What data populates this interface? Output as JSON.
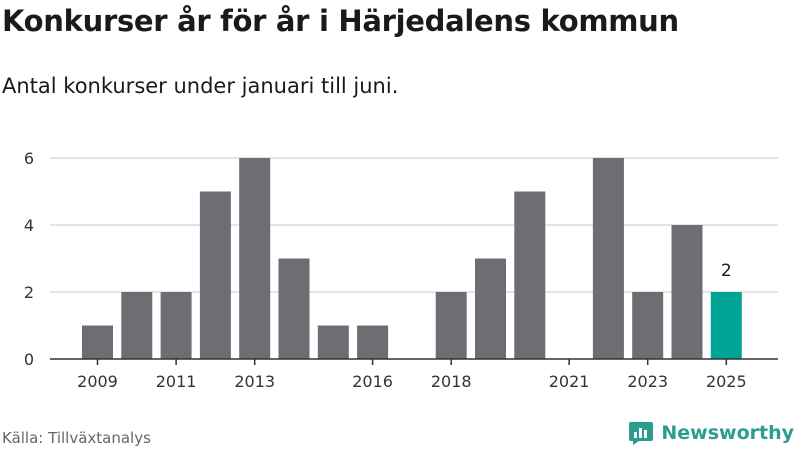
{
  "header": {
    "title": "Konkurser år för år i Härjedalens kommun",
    "subtitle": "Antal konkurser under januari till juni."
  },
  "footer": {
    "source": "Källa: Tillväxtanalys",
    "brand": "Newsworthy"
  },
  "icons": {
    "logo": "newsworthy-chart-bubble-icon"
  },
  "colors": {
    "bar": "#6e6d73",
    "highlight": "#00a496",
    "grid": "#dcdcdc",
    "axis": "#333333",
    "brand": "#2a9d8f"
  },
  "chart_data": {
    "type": "bar",
    "categories": [
      "2009",
      "2010",
      "2011",
      "2012",
      "2013",
      "2014",
      "2015",
      "2016",
      "2017",
      "2018",
      "2019",
      "2020",
      "2021",
      "2022",
      "2023",
      "2024",
      "2025"
    ],
    "values": [
      1,
      2,
      2,
      5,
      6,
      3,
      1,
      1,
      0,
      2,
      3,
      5,
      0,
      6,
      2,
      4,
      2
    ],
    "tick_labels": [
      "2009",
      "2011",
      "2013",
      "2016",
      "2018",
      "2021",
      "2023",
      "2025"
    ],
    "highlight_category": "2025",
    "data_labels": [
      {
        "category": "2025",
        "text": "2"
      }
    ],
    "yticks": [
      0,
      2,
      4,
      6
    ],
    "ylim": [
      0,
      6
    ],
    "xlabel": "",
    "ylabel": "",
    "grid": "horizontal"
  }
}
